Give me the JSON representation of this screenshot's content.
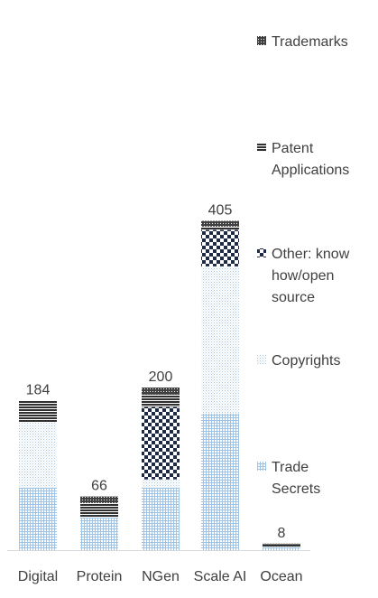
{
  "chart_data": {
    "type": "bar",
    "stacked": true,
    "categories": [
      "Digital",
      "Protein",
      "NGen",
      "Scale AI",
      "Ocean"
    ],
    "totals": [
      184,
      66,
      200,
      405,
      8
    ],
    "series": [
      {
        "name": "Trade Secrets",
        "values": [
          77,
          40,
          77,
          168,
          4
        ],
        "pattern": "grid",
        "color": "#9dc3e6"
      },
      {
        "name": "Copyrights",
        "values": [
          80,
          0,
          10,
          181,
          0
        ],
        "pattern": "dots",
        "color": "#b4cde6"
      },
      {
        "name": "Other: know how/open source",
        "values": [
          0,
          0,
          89,
          45,
          0
        ],
        "pattern": "checker",
        "color": "#1f2a44"
      },
      {
        "name": "Patent Applications",
        "values": [
          27,
          18,
          16,
          4,
          3
        ],
        "pattern": "hlines",
        "color": "#303030"
      },
      {
        "name": "Trademarks",
        "values": [
          0,
          8,
          8,
          7,
          1
        ],
        "pattern": "smallgrid",
        "color": "#404040"
      }
    ],
    "legend_position": "right",
    "grid": false,
    "colors": {
      "text": "#404040",
      "axis": "#d9d9d9"
    }
  }
}
